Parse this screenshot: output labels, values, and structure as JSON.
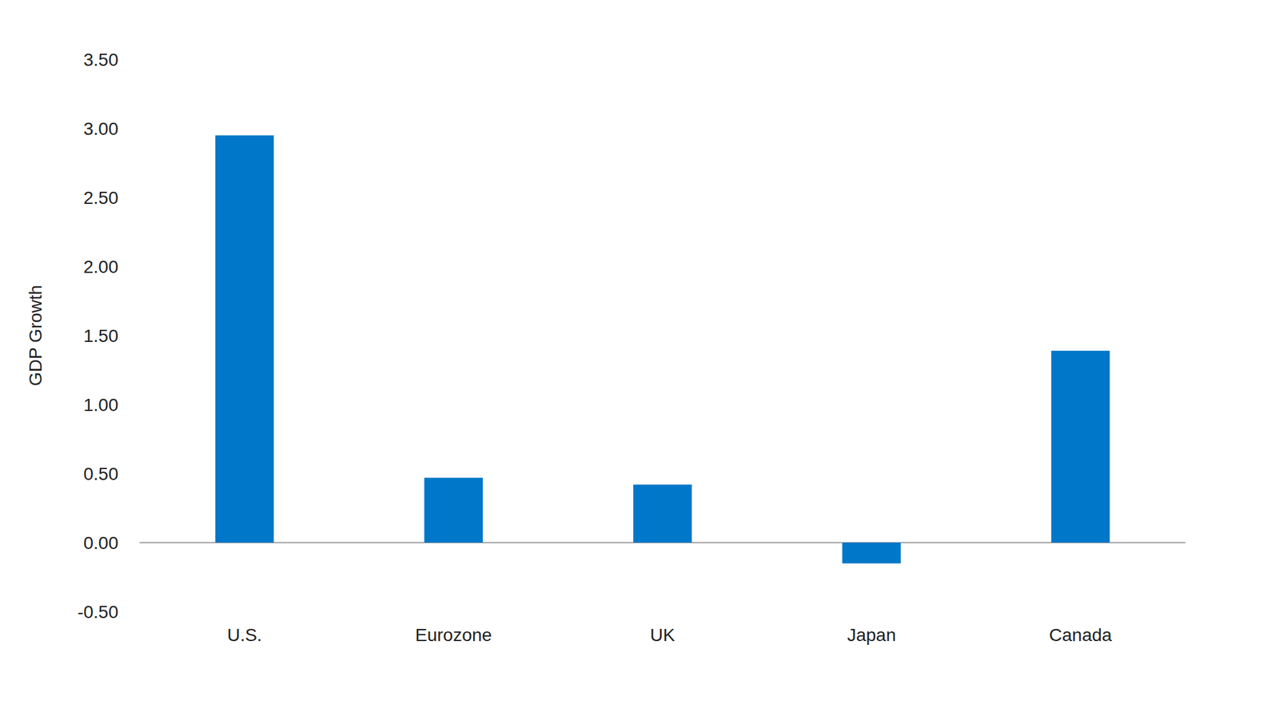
{
  "chart_data": {
    "type": "bar",
    "y_label": "GDP Growth",
    "categories": [
      "U.S.",
      "Eurozone",
      "UK",
      "Japan",
      "Canada"
    ],
    "values": [
      2.95,
      0.47,
      0.42,
      -0.15,
      1.39
    ],
    "color": "#0077c8",
    "ylim": [
      -0.5,
      3.5
    ],
    "yticks": [
      {
        "value": -0.5,
        "label": "-0.50"
      },
      {
        "value": 0,
        "label": "0.00"
      },
      {
        "value": 0.5,
        "label": "0.50"
      },
      {
        "value": 1,
        "label": "1.00"
      },
      {
        "value": 1.5,
        "label": "1.50"
      },
      {
        "value": 2,
        "label": "2.00"
      },
      {
        "value": 2.5,
        "label": "2.50"
      },
      {
        "value": 3,
        "label": "3.00"
      },
      {
        "value": 3.5,
        "label": "3.50"
      }
    ],
    "grid": false
  }
}
